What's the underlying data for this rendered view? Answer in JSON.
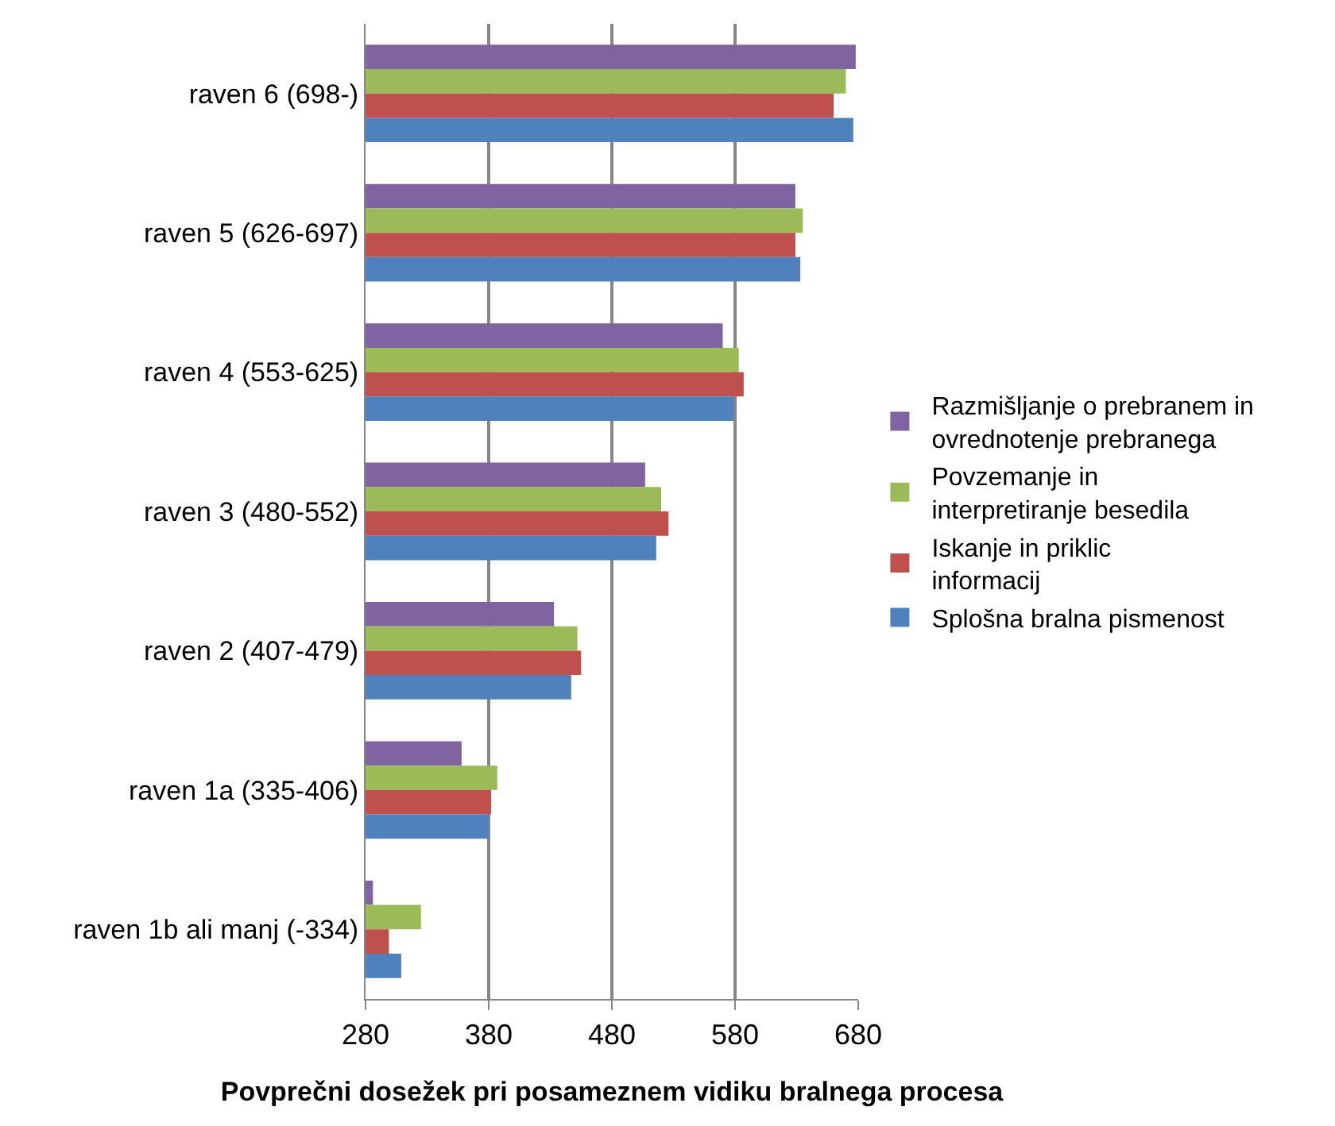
{
  "chart_data": {
    "type": "bar",
    "orientation": "horizontal",
    "xlabel": "Povprečni dosežek pri posameznem vidiku bralnega procesa",
    "categories": [
      "raven 6 (698-)",
      "raven 5 (626-697)",
      "raven 4 (553-625)",
      "raven 3 (480-552)",
      "raven 2 (407-479)",
      "raven 1a (335-406)",
      "raven 1b ali manj (-334)"
    ],
    "series": [
      {
        "name": "Razmišljanje o prebranem in ovrednotenje prebranega",
        "color": "#8064a2",
        "values": [
          678,
          629,
          570,
          507,
          433,
          358,
          286
        ]
      },
      {
        "name": "Povzemanje in interpretiranje besedila",
        "color": "#9bbb59",
        "values": [
          670,
          635,
          583,
          520,
          452,
          387,
          325
        ]
      },
      {
        "name": "Iskanje in priklic informacij",
        "color": "#c0504d",
        "values": [
          660,
          629,
          587,
          526,
          455,
          382,
          299
        ]
      },
      {
        "name": "Splošna bralna pismenost",
        "color": "#4f81bd",
        "values": [
          676,
          633,
          579,
          516,
          447,
          380,
          309
        ]
      }
    ],
    "xlim": [
      280,
      680
    ],
    "xticks": [
      280,
      380,
      480,
      580,
      680
    ],
    "grid": "x",
    "legend": "right"
  }
}
